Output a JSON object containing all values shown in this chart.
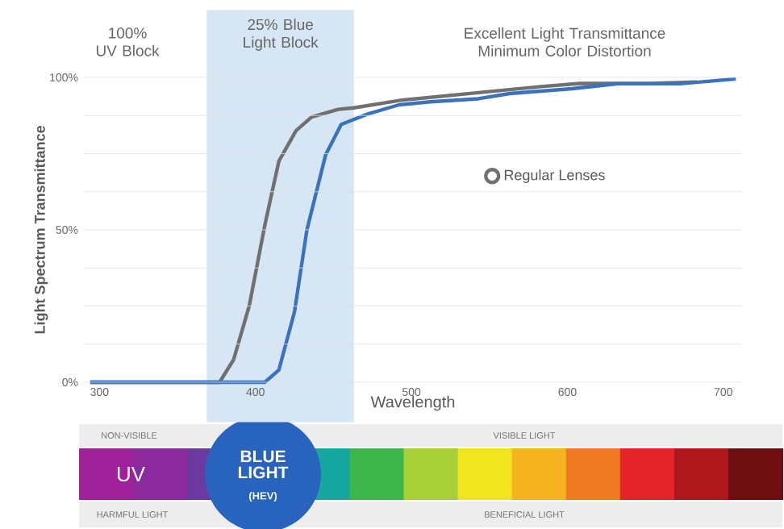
{
  "chart_data": {
    "type": "line",
    "xlabel": "Wavelength",
    "ylabel": "Light Spectrum Transmittance",
    "xlim": [
      290,
      712
    ],
    "ylim": [
      0,
      100
    ],
    "xticks": [
      300,
      400,
      500,
      600,
      700
    ],
    "yticks": [
      {
        "value": 0,
        "label": "0%"
      },
      {
        "value": 12.5,
        "label": null
      },
      {
        "value": 25,
        "label": null
      },
      {
        "value": 37.5,
        "label": null
      },
      {
        "value": 50,
        "label": "50%"
      },
      {
        "value": 62.5,
        "label": null
      },
      {
        "value": 75,
        "label": null
      },
      {
        "value": 87.5,
        "label": null
      },
      {
        "value": 100,
        "label": "100%"
      }
    ],
    "grid": "y",
    "legend": "right",
    "series": [
      {
        "name": "Regular Lenses",
        "color": "#707070",
        "x": [
          294,
          377,
          386,
          396,
          406,
          415,
          426,
          436,
          453,
          463,
          493,
          513,
          543,
          583,
          608,
          653,
          683
        ],
        "values": [
          0,
          0,
          7.4,
          25,
          51.5,
          72.5,
          82.5,
          87,
          89.5,
          90,
          92.5,
          93.5,
          95,
          97,
          98,
          98,
          98.5
        ]
      },
      {
        "color": "#3a72c0",
        "x": [
          294,
          406,
          415,
          425,
          433,
          445,
          455,
          472,
          492,
          512,
          543,
          563,
          603,
          632,
          672,
          708
        ],
        "values": [
          0,
          0,
          4,
          23,
          50,
          74.6,
          84.6,
          88,
          91,
          92,
          93,
          94.7,
          96.3,
          97.9,
          97.9,
          99.5
        ]
      }
    ],
    "bands": [
      {
        "axis": "x",
        "from": 369,
        "to": 463,
        "label": "25% Blue Light Block",
        "color": "#d6e6f5"
      }
    ],
    "annotations": [
      "100% UV Block",
      "Excellent Light Transmittance Minimum Color Distortion",
      "NON-VISIBLE",
      "VISIBLE LIGHT",
      "HARMFUL LIGHT",
      "BENEFICIAL LIGHT",
      "UV",
      "BLUE LIGHT",
      "(HEV)"
    ]
  }
}
